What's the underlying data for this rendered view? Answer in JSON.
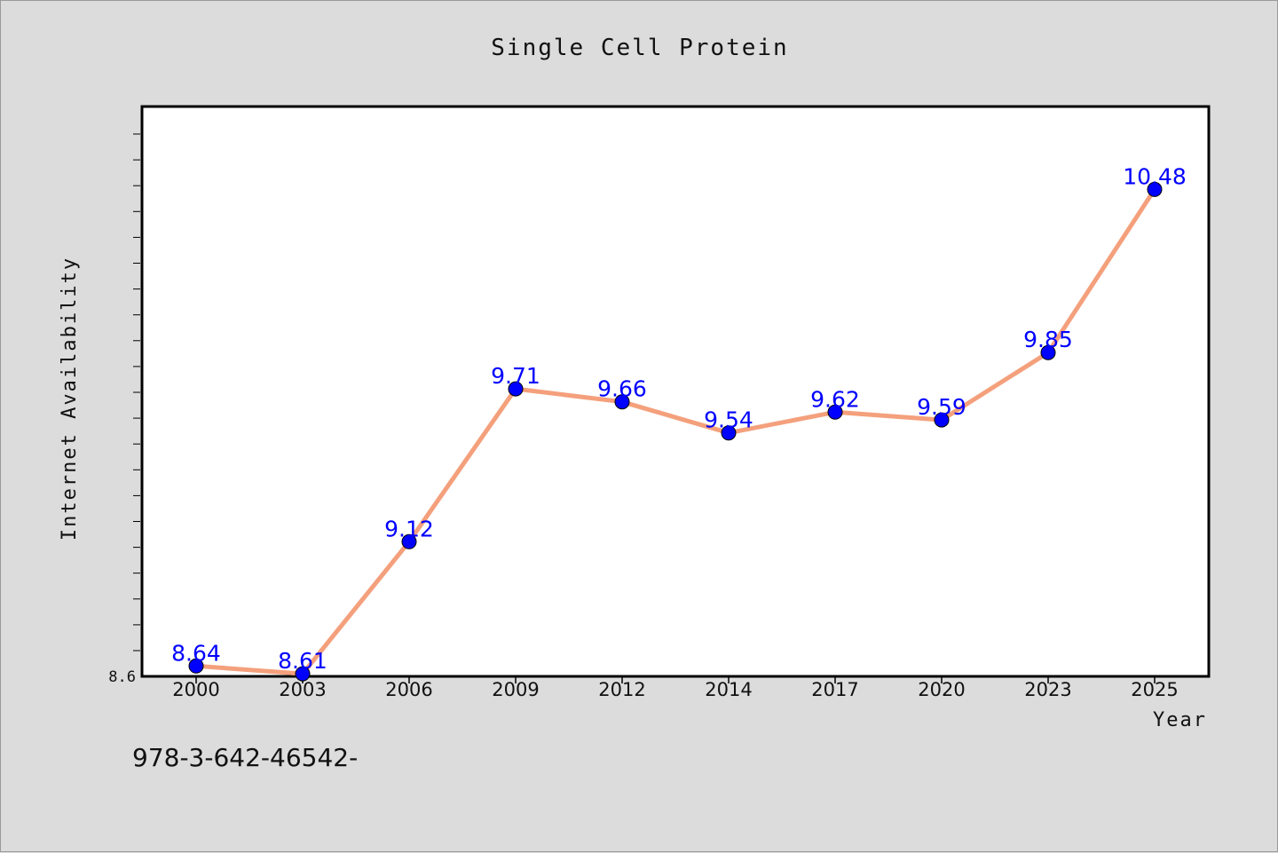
{
  "chart_data": {
    "type": "line",
    "title": "Single Cell Protein",
    "xlabel": "Year",
    "ylabel": "Internet Availability",
    "categories": [
      "2000",
      "2003",
      "2006",
      "2009",
      "2012",
      "2014",
      "2017",
      "2020",
      "2023",
      "2025"
    ],
    "series": [
      {
        "values": [
          8.64,
          8.61,
          9.12,
          9.71,
          9.66,
          9.54,
          9.62,
          9.59,
          9.85,
          10.48
        ],
        "labels": [
          "8.64",
          "8.61",
          "9.12",
          "9.71",
          "9.66",
          "9.54",
          "9.62",
          "9.59",
          "9.85",
          "10.48"
        ],
        "line_color": "#f4a07c",
        "marker_color": "#0000ff"
      }
    ],
    "yticks": [
      "8.6"
    ],
    "ylim": [
      8.6,
      10.8
    ],
    "grid": false
  },
  "footnote": "978-3-642-46542-"
}
